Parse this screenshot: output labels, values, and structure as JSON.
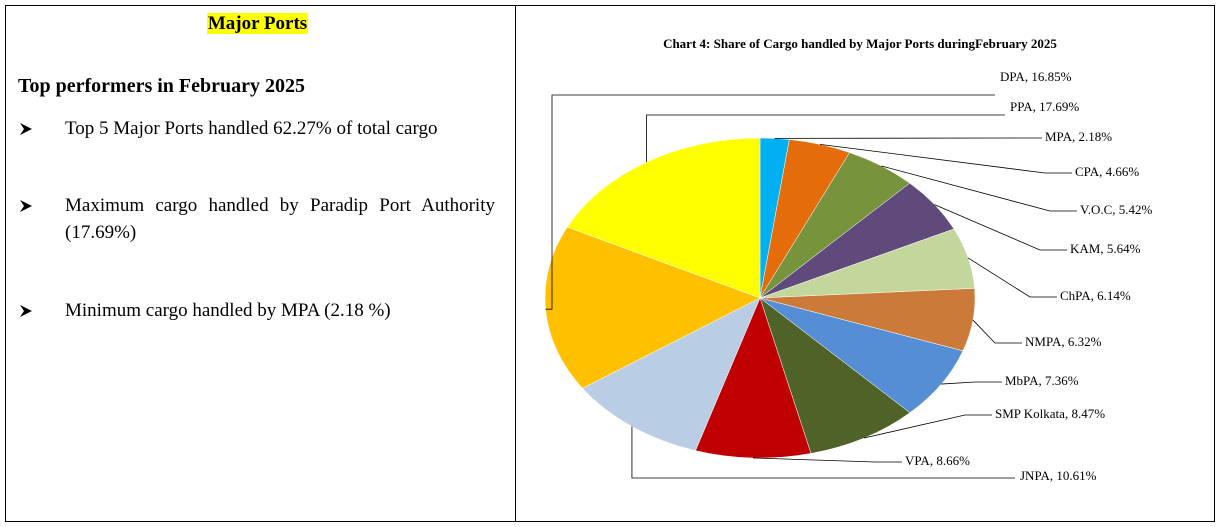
{
  "left": {
    "heading": "Major Ports",
    "subheading": "Top performers in February 2025",
    "bullets": [
      "Top 5 Major Ports handled 62.27% of total cargo",
      "Maximum cargo handled by Paradip Port Authority (17.69%)",
      "Minimum cargo handled by MPA (2.18 %)"
    ]
  },
  "chart_data": {
    "type": "pie",
    "title": "Chart 4: Share of Cargo handled by Major Ports duringFebruary 2025",
    "values": [
      2.18,
      4.66,
      5.42,
      5.64,
      6.14,
      6.32,
      7.36,
      8.47,
      8.66,
      10.61,
      16.85,
      17.69
    ],
    "value_labels": [
      "MPA, 2.18%",
      "CPA, 4.66%",
      "V.O.C, 5.42%",
      "KAM, 5.64%",
      "ChPA, 6.14%",
      "NMPA, 6.32%",
      "MbPA, 7.36%",
      "SMP Kolkata, 8.47%",
      "VPA, 8.66%",
      "JNPA, 10.61%",
      "DPA, 16.85%",
      "PPA, 17.69%"
    ],
    "colors": [
      "#00b0f0",
      "#e46c0a",
      "#77933c",
      "#604a7b",
      "#c3d69b",
      "#cc7a3a",
      "#558ed5",
      "#4f6228",
      "#c00000",
      "#b9cde5",
      "#ffc000",
      "#ffff00"
    ]
  }
}
